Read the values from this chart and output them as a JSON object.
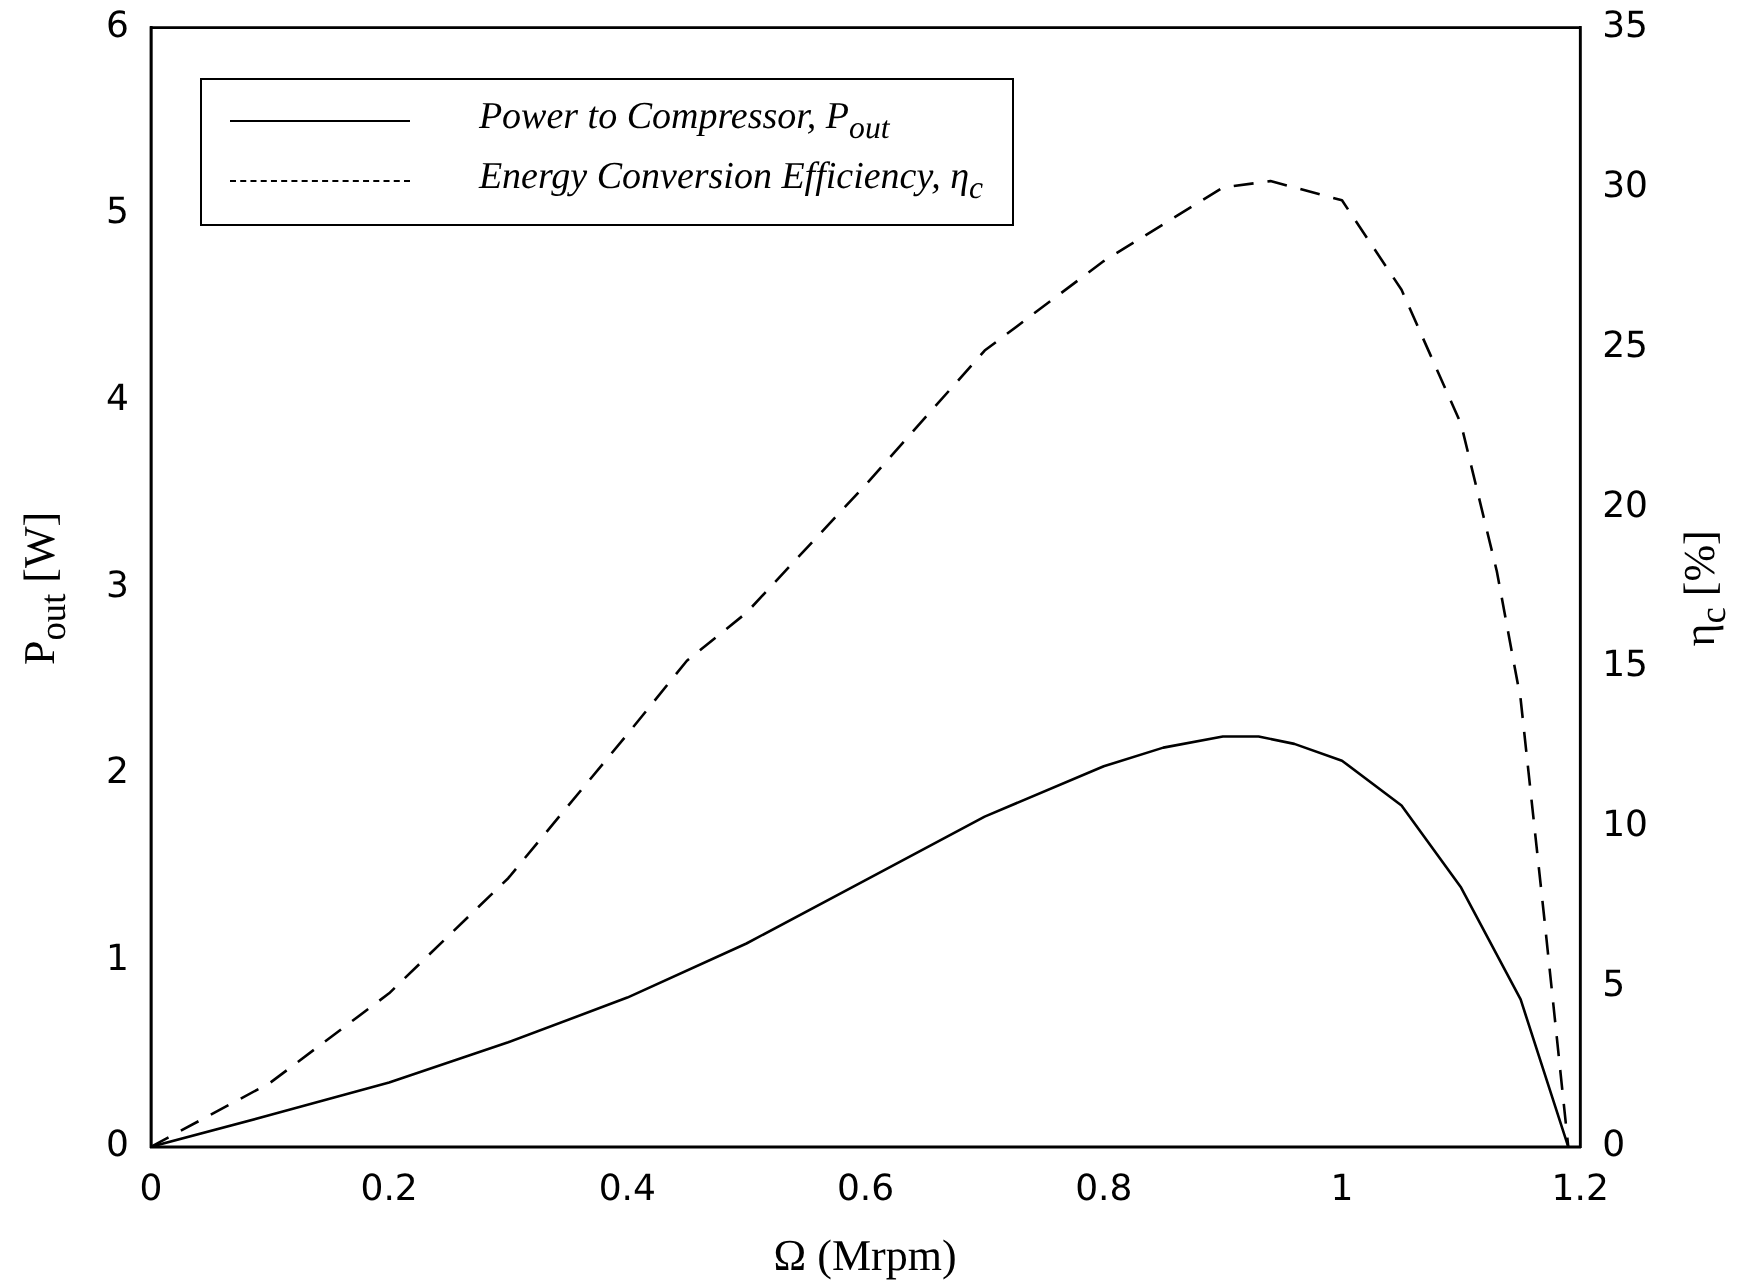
{
  "chart_data": {
    "type": "line",
    "xlabel": "Ω (Mrpm)",
    "ylabel": "P$_{out}$ [W]",
    "y2label": "η$_{c}$ [%]",
    "xlim": [
      0,
      1.2
    ],
    "xticks": [
      0,
      0.2,
      0.4,
      0.6,
      0.8,
      1,
      1.2
    ],
    "ylim": [
      0,
      6
    ],
    "yticks": [
      0,
      1,
      2,
      3,
      4,
      5,
      6
    ],
    "y2lim": [
      0,
      35
    ],
    "y2ticks": [
      0,
      5,
      10,
      15,
      20,
      25,
      30,
      35
    ],
    "grid": false,
    "legend": "top left",
    "marker": "none",
    "series": [
      {
        "name": "Power to Compressor, P$_{out}$",
        "color": "#000000",
        "line_style": "solid",
        "x": [
          0,
          0.1,
          0.2,
          0.3,
          0.4,
          0.5,
          0.6,
          0.7,
          0.8,
          0.85,
          0.9,
          0.93,
          0.96,
          1,
          1.05,
          1.1,
          1.15,
          1.19
        ],
        "values": [
          0,
          0.17,
          0.345,
          0.56,
          0.8,
          1.09,
          1.43,
          1.77,
          2.04,
          2.14,
          2.2,
          2.2,
          2.16,
          2.07,
          1.83,
          1.39,
          0.79,
          0
        ]
      },
      {
        "name": "Energy Conversion Efficiency, η$_{c}$",
        "color": "#000000",
        "line_style": "dashed",
        "axis": "y2",
        "x": [
          0,
          0.1,
          0.2,
          0.3,
          0.4,
          0.45,
          0.5,
          0.6,
          0.7,
          0.8,
          0.9,
          0.94,
          1,
          1.05,
          1.1,
          1.13,
          1.15,
          1.17,
          1.19
        ],
        "values": [
          0,
          2,
          4.8,
          8.4,
          12.9,
          15.2,
          16.7,
          20.7,
          24.9,
          27.7,
          30,
          30.2,
          29.6,
          26.8,
          22.6,
          18,
          14,
          7.1,
          0
        ]
      }
    ]
  }
}
